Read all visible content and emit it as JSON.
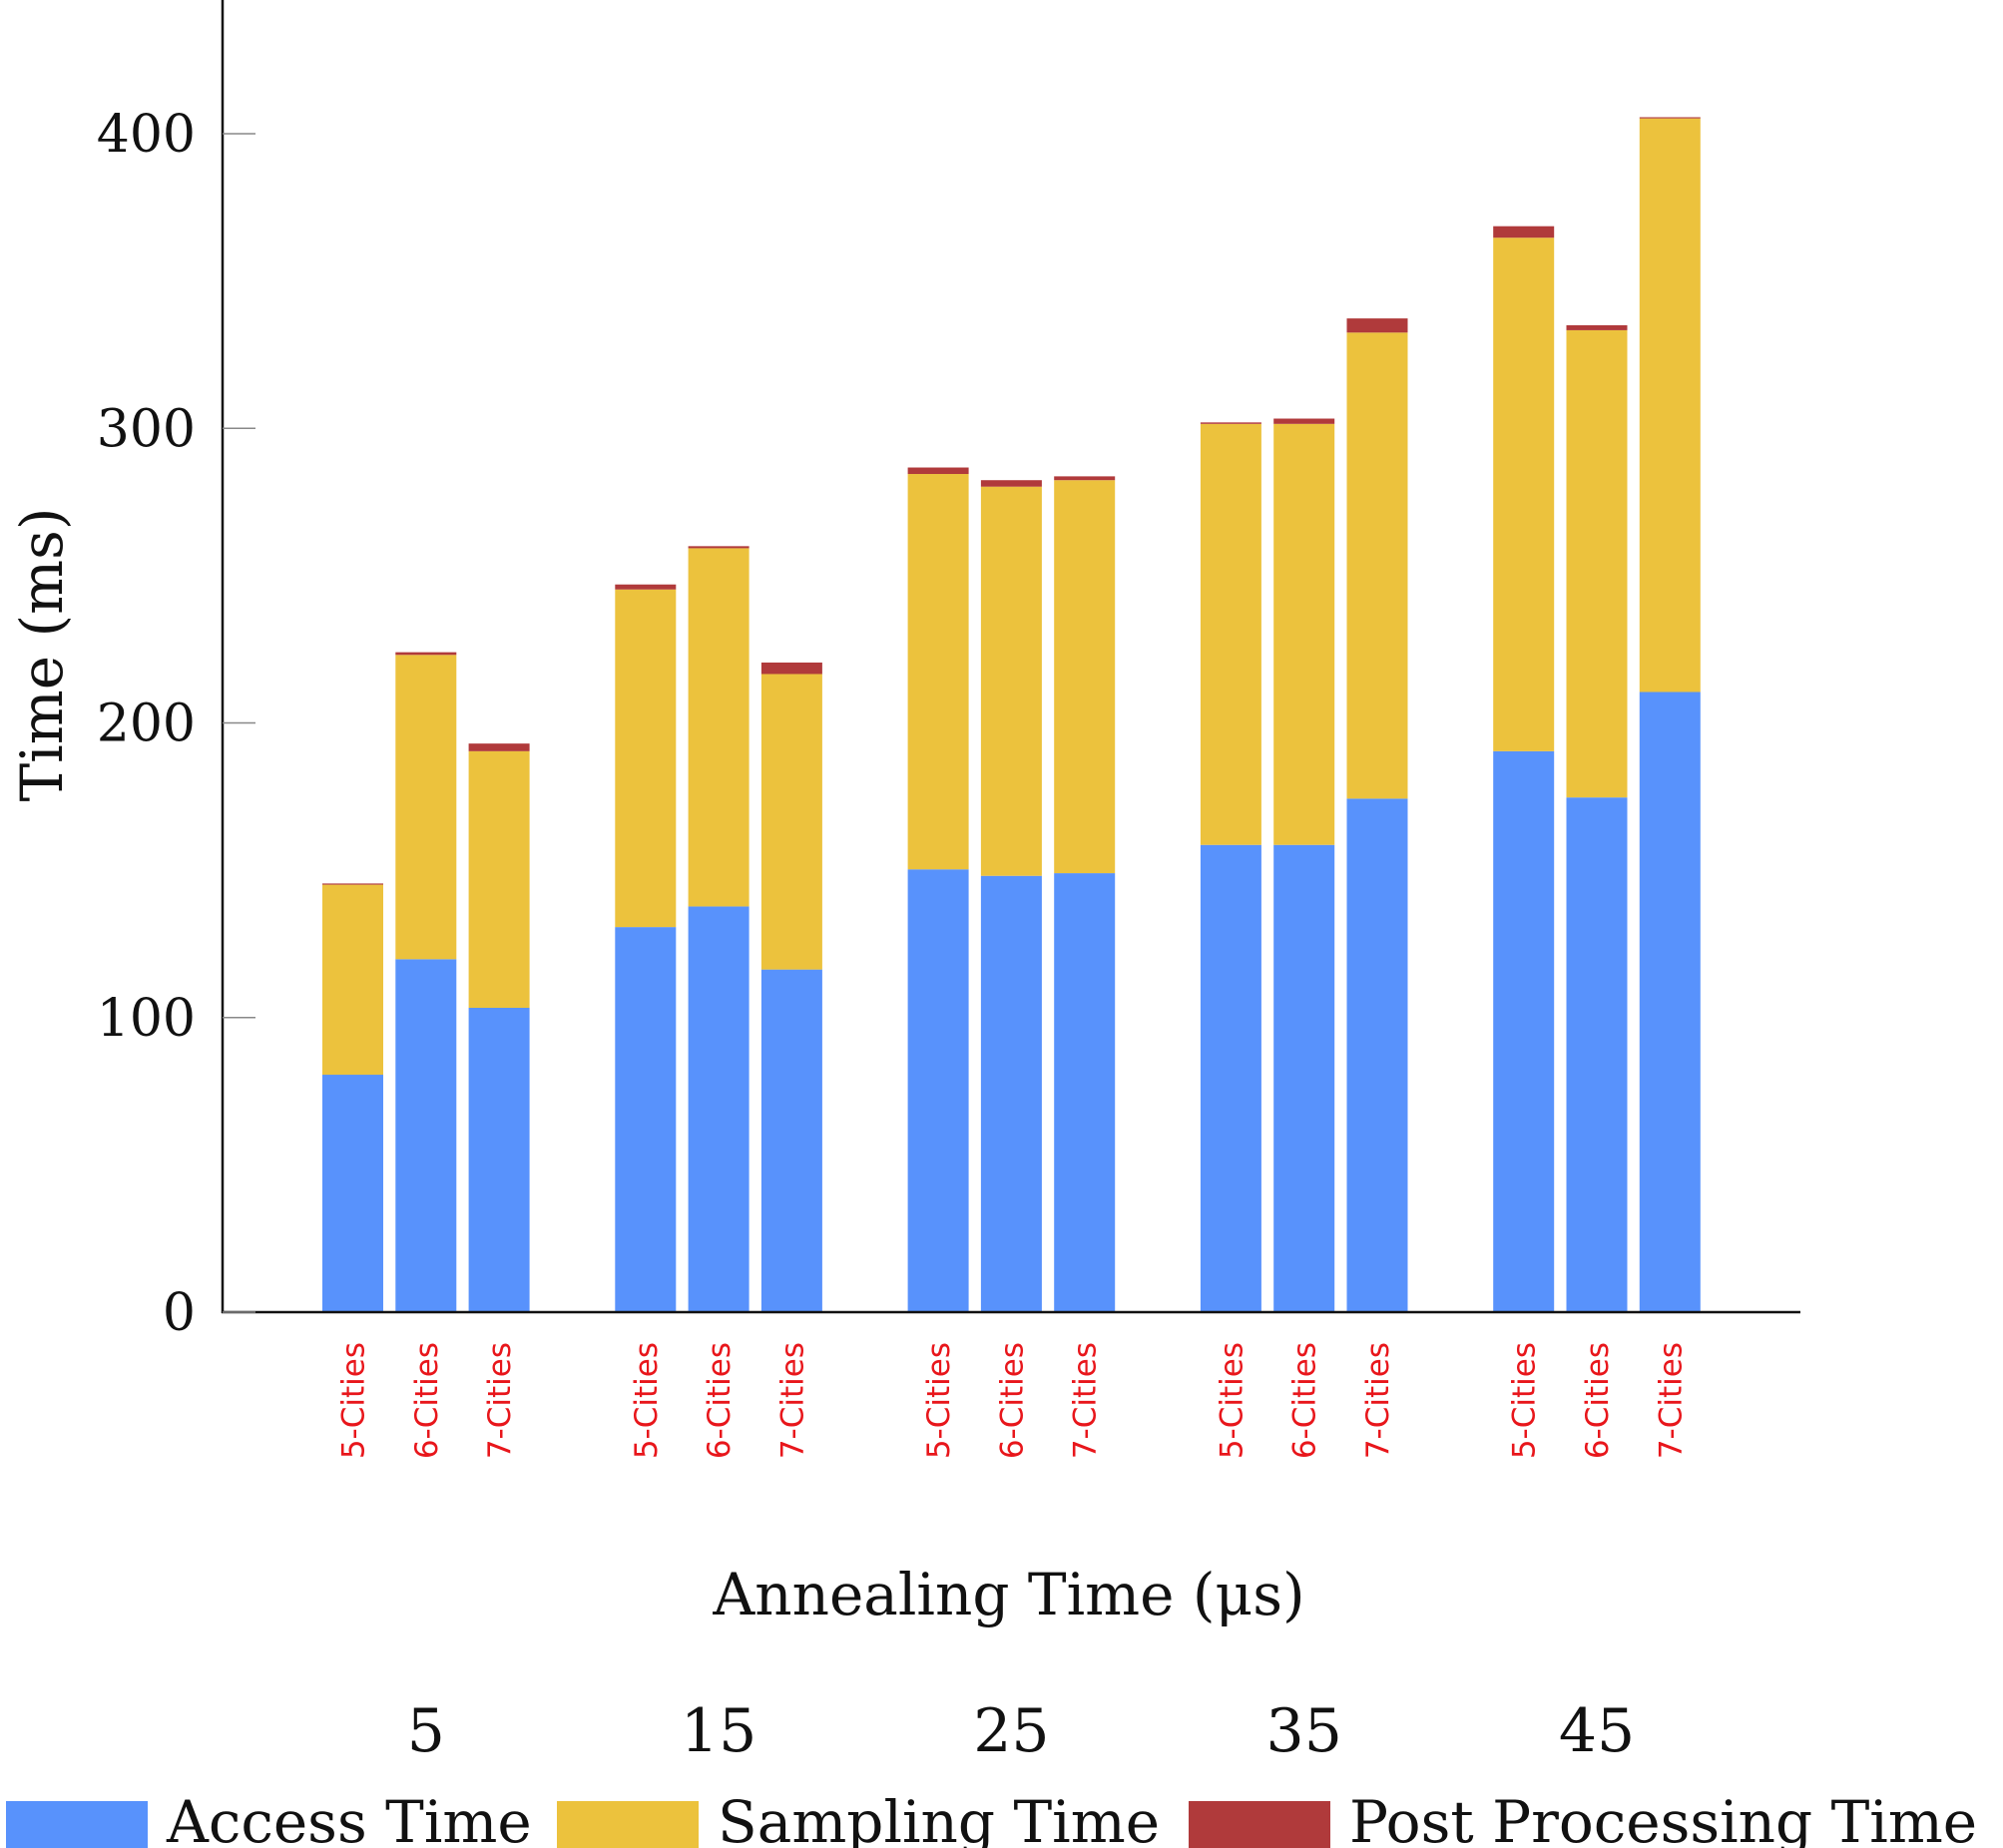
{
  "chart_data": {
    "type": "bar",
    "stacked": true,
    "title": "",
    "xlabel": "Annealing Time (μs)",
    "ylabel": "Time (ms)",
    "ylim": [
      0,
      445
    ],
    "yticks": [
      0,
      100,
      200,
      300,
      400
    ],
    "grid": false,
    "legend_position": "bottom",
    "groups": [
      "5",
      "15",
      "25",
      "35",
      "45"
    ],
    "categories": [
      "5-Cities",
      "6-Cities",
      "7-Cities"
    ],
    "series": [
      {
        "name": "Access Time",
        "color": "#5892fc",
        "values": [
          [
            80.6,
            119.8,
            103.3
          ],
          [
            130.7,
            137.7,
            116.3
          ],
          [
            150.3,
            148.1,
            149.0
          ],
          [
            158.6,
            158.6,
            174.3
          ],
          [
            190.4,
            174.7,
            210.5
          ]
        ]
      },
      {
        "name": "Sampling Time",
        "color": "#ecc23d",
        "values": [
          [
            64.5,
            103.3,
            87.1
          ],
          [
            114.6,
            121.6,
            100.3
          ],
          [
            134.2,
            132.1,
            133.4
          ],
          [
            142.9,
            142.9,
            158.2
          ],
          [
            174.3,
            158.6,
            194.7
          ]
        ]
      },
      {
        "name": "Post Processing Time",
        "color": "#b03a3b",
        "values": [
          [
            0.4,
            0.9,
            2.6
          ],
          [
            1.7,
            0.7,
            3.9
          ],
          [
            2.2,
            2.2,
            1.3
          ],
          [
            0.5,
            1.8,
            4.8
          ],
          [
            3.9,
            1.7,
            0.4
          ]
        ]
      }
    ]
  }
}
